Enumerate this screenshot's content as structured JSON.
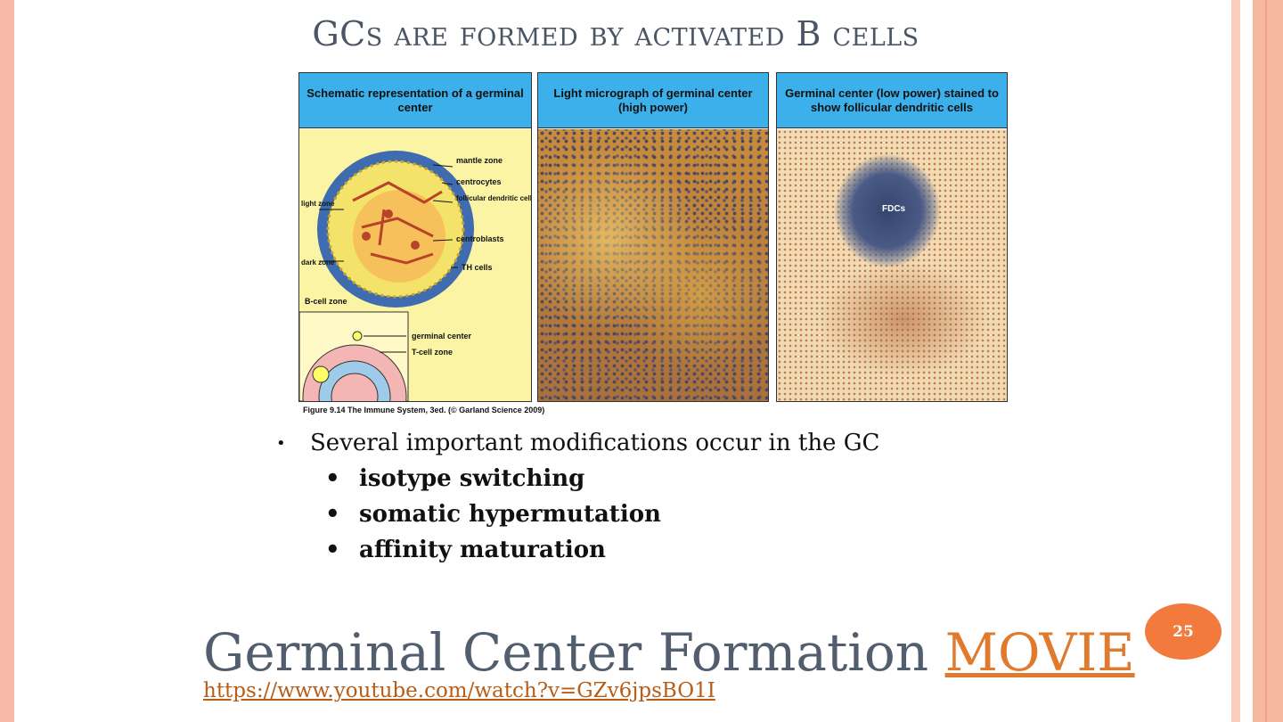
{
  "slide": {
    "title": "GCs are formed by activated B cells",
    "page_number": "25"
  },
  "figure": {
    "panels": [
      {
        "header": "Schematic representation of a germinal center"
      },
      {
        "header": "Light micrograph of germinal center (high power)"
      },
      {
        "header": "Germinal center (low power) stained to show follicular dendritic cells"
      }
    ],
    "labels": {
      "mantle_zone": "mantle zone",
      "centrocytes": "centrocytes",
      "follicular_dendritic": "follicular dendritic cells",
      "light_zone": "light zone",
      "centroblasts": "centroblasts",
      "dark_zone": "dark zone",
      "th_cells": "TH cells",
      "b_cell_zone": "B-cell zone",
      "germinal_center": "germinal center",
      "t_cell_zone": "T-cell zone",
      "fdcs": "FDCs"
    },
    "caption": "Figure 9.14 The Immune System, 3ed. (© Garland Science 2009)"
  },
  "bullets": {
    "main": "Several important modifications occur in the GC",
    "subs": [
      "isotype switching",
      "somatic hypermutation",
      "affinity maturation"
    ]
  },
  "footer": {
    "heading_text": "Germinal Center Formation",
    "movie_link": "MOVIE",
    "url": "https://www.youtube.com/watch?v=GZv6jpsBO1I"
  }
}
